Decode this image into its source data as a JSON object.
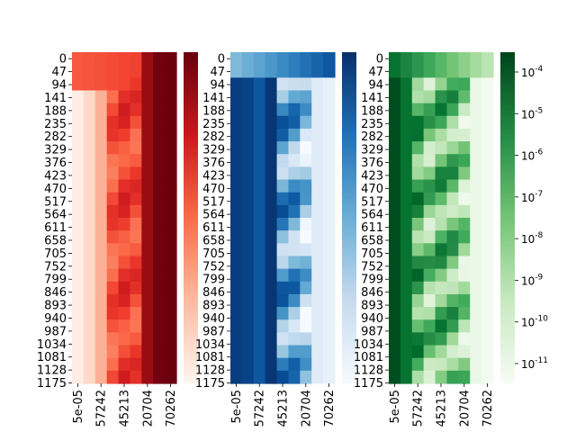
{
  "chart_data": [
    {
      "type": "heatmap",
      "cmap": "Reds",
      "ylim": [
        0,
        1200
      ],
      "ytick_labels": [
        "0",
        "47",
        "94",
        "141",
        "188",
        "235",
        "282",
        "329",
        "376",
        "423",
        "470",
        "517",
        "564",
        "611",
        "658",
        "705",
        "752",
        "799",
        "846",
        "893",
        "940",
        "987",
        "1034",
        "1081",
        "1128",
        "1175"
      ],
      "xtick_labels": [
        "5e-05",
        "57242",
        "45213",
        "20704",
        "70262"
      ],
      "grid": false,
      "colorbar": true
    },
    {
      "type": "heatmap",
      "cmap": "Blues",
      "ylim": [
        0,
        1200
      ],
      "ytick_labels": [
        "0",
        "47",
        "94",
        "141",
        "188",
        "235",
        "282",
        "329",
        "376",
        "423",
        "470",
        "517",
        "564",
        "611",
        "658",
        "705",
        "752",
        "799",
        "846",
        "893",
        "940",
        "987",
        "1034",
        "1081",
        "1128",
        "1175"
      ],
      "xtick_labels": [
        "5e-05",
        "57242",
        "45213",
        "20704",
        "70262"
      ],
      "grid": false,
      "colorbar": true
    },
    {
      "type": "heatmap",
      "cmap": "Greens",
      "ylim": [
        0,
        1200
      ],
      "ytick_labels": [
        "0",
        "47",
        "94",
        "141",
        "188",
        "235",
        "282",
        "329",
        "376",
        "423",
        "470",
        "517",
        "564",
        "611",
        "658",
        "705",
        "752",
        "799",
        "846",
        "893",
        "940",
        "987",
        "1034",
        "1081",
        "1128",
        "1175"
      ],
      "xtick_labels": [
        "5e-05",
        "57242",
        "45213",
        "20704",
        "70262"
      ],
      "grid": false,
      "colorbar": true,
      "colorbar_scale": "log",
      "colorbar_ticks": [
        {
          "label": "10",
          "exp": "-4",
          "value": 0.0001
        },
        {
          "label": "10",
          "exp": "-5",
          "value": 1e-05
        },
        {
          "label": "10",
          "exp": "-6",
          "value": 1e-06
        },
        {
          "label": "10",
          "exp": "-7",
          "value": 1e-07
        },
        {
          "label": "10",
          "exp": "-8",
          "value": 1e-08
        },
        {
          "label": "10",
          "exp": "-9",
          "value": 1e-09
        },
        {
          "label": "10",
          "exp": "-10",
          "value": 1e-10
        },
        {
          "label": "10",
          "exp": "-11",
          "value": 1e-11
        }
      ]
    }
  ]
}
